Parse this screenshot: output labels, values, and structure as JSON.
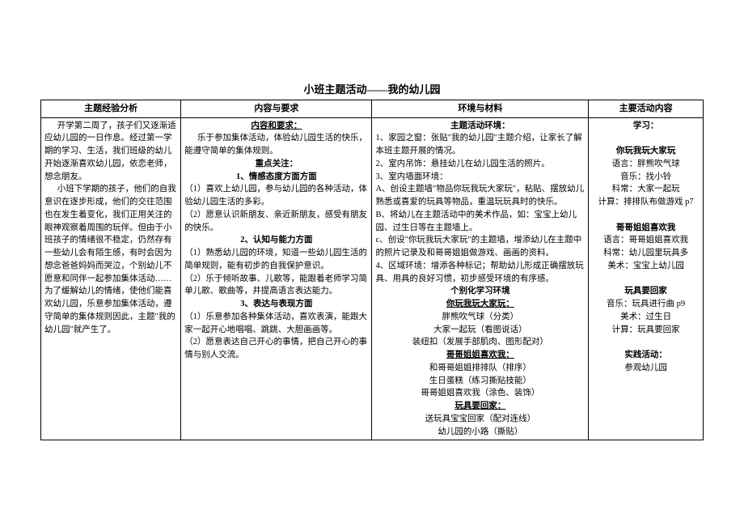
{
  "title": "小班主题活动——我的幼儿园",
  "headers": [
    "主题经验分析",
    "内容与要求",
    "环境与材料",
    "主要活动内容"
  ],
  "col1": {
    "p1": "开学第二周了，孩子们又逐渐适应幼儿园的一日作息。经过第一学期的学习、生活，我们班级的幼儿开始逐渐喜欢幼儿园，依恋老师，想念朋友。",
    "p2": "小班下学期的孩子，他们的自我意识在逐步形成，他们的交往范围也在发生着变化，我们正用关注的眼神观察着周围的玩伴。但由于小班孩子的情绪很不稳定，仍然存有一些幼儿会有陌生感，有时会因为想念爸爸妈妈而哭泣，个别幼儿不愿意和同伴一起参加集体活动……为了缓解幼儿的情绪，使他们能喜欢幼儿园，乐意参加集体活动，遵守简单的集体规则因此，主题\"我的幼儿园\"就产生了。"
  },
  "col2": {
    "head1": "内容和要求：",
    "req": "乐于参加集体活动，体验幼儿园生活的快乐，能遵守简单的集体规则。",
    "head2": "重点关注：",
    "s1_title": "1、情感态度方面方面",
    "s1_1": "（1）喜欢上幼儿园，参与幼儿园的各种活动，体验幼儿园生活的多彩。",
    "s1_2": "（2）愿意认识新朋友、亲近新朋友，感受有朋友的快乐。",
    "s2_title": "2、认知与能力方面",
    "s2_1": "（1）熟悉幼儿园的环境，知道一些幼儿园生活的简单规则，能有初步的自我保护意识。",
    "s2_2": "（2）乐于倾听故事、儿歌等，能跟着老师学习简单儿歌、歌曲等，并提高语言表达能力。",
    "s3_title": "3、表达与表现方面",
    "s3_1": "（1）乐意参加各种集体活动，喜欢表演，能跟大家一起开心地唱唱、跳跳、大胆画画等。",
    "s3_2": "（2）愿意表达自己开心的事情，把自己开心的事情与别人交流。"
  },
  "col3": {
    "head1": "主题活动环境：",
    "e1": "1、家园之窗：张贴\"我的幼儿园\"主题介绍，让家长了解本班主题开展的情况。",
    "e2": "2、室内吊饰：悬挂幼儿在幼儿园生活的照片。",
    "e3": "3、室内墙面环境：",
    "e3a": "A、创设主题墙\"物品你玩我玩大家玩\"，粘贴、摆放幼儿熟悉或喜爱的玩具等物品，重温玩玩具时的快乐。",
    "e3b": "B、将幼儿在主题活动中的美术作品，如：宝宝上幼儿园、过生日等在主题墙上。",
    "e3c": "c、创设\"你玩我玩大家玩\"的主题墙，增添幼儿在主题中的照片记录及和哥哥姐姐做游戏、画画的资料。",
    "e4": "4、区域环境：增添各种标记；帮助幼儿形成正确摆放玩具、用具的良好习惯，初步感受环境的有序感。",
    "head2": "个别化学习环境",
    "g1_title": "你玩我玩大家玩：",
    "g1_1": "胖熊吹气球（分类）",
    "g1_2": "大家一起玩（看图说话）",
    "g1_3": "装纽扣（发展手部肌肉、图形配对）",
    "g2_title": "哥哥姐姐喜欢我：",
    "g2_1": "和哥哥姐姐排排队（排序）",
    "g2_2": "生日蛋糕（练习撕贴技能）",
    "g2_3": "哥哥姐姐喜欢我（涂色、装饰）",
    "g3_title": "玩具要回家：",
    "g3_1": "送玩具宝宝回家（配对连线）",
    "g3_2": "幼儿园的小路（撕贴）"
  },
  "col4": {
    "s1_title": "学习：",
    "g1_title": "你玩我玩大家玩",
    "g1_1": "语言：胖熊吹气球",
    "g1_2": "音乐：找小铃",
    "g1_3": "科常：大家一起玩",
    "g1_4": "计算：排排队布做游戏 p7",
    "g2_title": "哥哥姐姐喜欢我",
    "g2_1": "语言：哥哥姐姐喜欢我",
    "g2_2": "科常：幼儿园里玩具多",
    "g2_3": "美术：宝宝上幼儿园",
    "g3_title": "玩具要回家",
    "g3_1": "音乐：玩具进行曲 p9",
    "g3_2": "美术：过生日",
    "g3_3": "计算：玩具要回家",
    "s2_title": "实践活动：",
    "s2_1": "参观幼儿园"
  }
}
